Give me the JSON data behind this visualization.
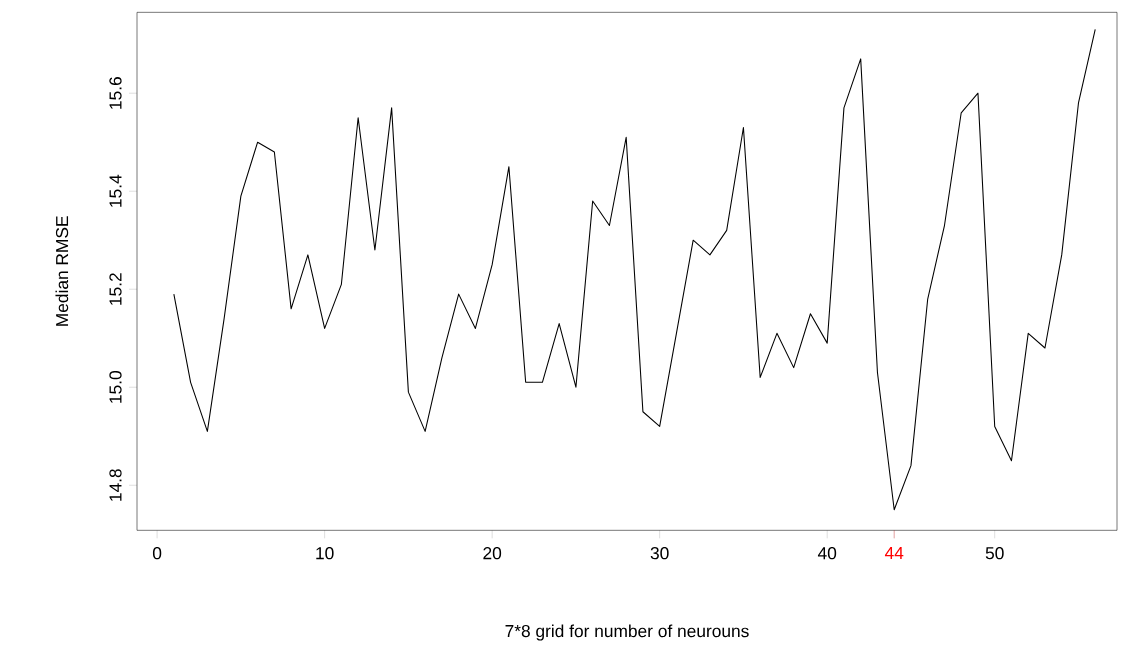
{
  "chart_data": {
    "type": "line",
    "xlabel": "7*8 grid for number of neurouns",
    "ylabel": "Median RMSE",
    "x": [
      1,
      2,
      3,
      4,
      5,
      6,
      7,
      8,
      9,
      10,
      11,
      12,
      13,
      14,
      15,
      16,
      17,
      18,
      19,
      20,
      21,
      22,
      23,
      24,
      25,
      26,
      27,
      28,
      29,
      30,
      31,
      32,
      33,
      34,
      35,
      36,
      37,
      38,
      39,
      40,
      41,
      42,
      43,
      44,
      45,
      46,
      47,
      48,
      49,
      50,
      51,
      52,
      53,
      54,
      55,
      56
    ],
    "values": [
      15.19,
      15.01,
      14.91,
      15.14,
      15.39,
      15.5,
      15.48,
      15.16,
      15.27,
      15.12,
      15.21,
      15.55,
      15.28,
      15.57,
      14.99,
      14.91,
      15.06,
      15.19,
      15.12,
      15.25,
      15.45,
      15.01,
      15.01,
      15.13,
      15.0,
      15.38,
      15.33,
      15.51,
      14.95,
      14.92,
      15.11,
      15.3,
      15.27,
      15.32,
      15.53,
      15.02,
      15.11,
      15.04,
      15.15,
      15.09,
      15.57,
      15.67,
      15.03,
      14.75,
      14.84,
      15.18,
      15.33,
      15.56,
      15.6,
      14.92,
      14.85,
      15.11,
      15.08,
      15.27,
      15.58,
      15.73
    ],
    "color": "#000000",
    "marker": "none",
    "line_style": "solid",
    "xlim": [
      -1.2,
      57.3
    ],
    "ylim": [
      14.708,
      15.765
    ],
    "xticks": [
      0,
      10,
      20,
      30,
      40,
      {
        "value": 44,
        "label": "44"
      },
      50
    ],
    "yticks": [
      14.8,
      {
        "value": 15.0,
        "label": "15.0"
      },
      15.2,
      15.4,
      15.6
    ]
  }
}
